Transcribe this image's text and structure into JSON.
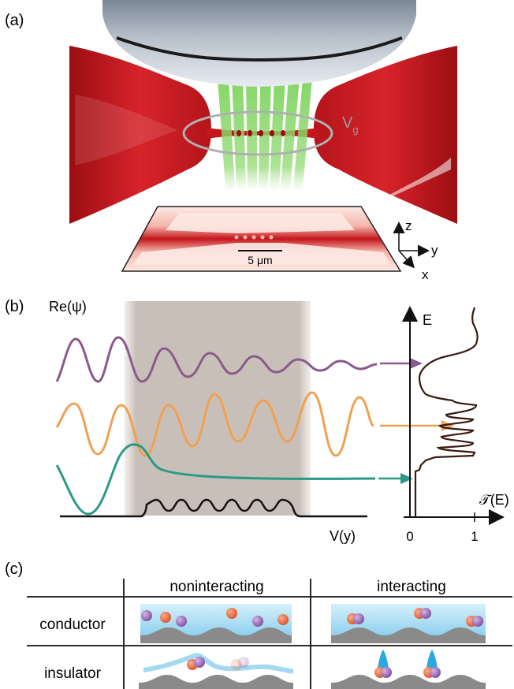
{
  "panels": {
    "a": {
      "label": "(a)",
      "gate_label": "V",
      "gate_sub": "g",
      "scale_bar": "5 μm",
      "axes": {
        "z": "z",
        "y": "y",
        "x": "x"
      }
    },
    "b": {
      "label": "(b)",
      "y_label": "Re(ψ)",
      "potential_label": "V(y)",
      "energy_axis_label": "E",
      "transmission_label": "𝒯(E)",
      "tick_0": "0",
      "tick_1": "1"
    },
    "c": {
      "label": "(c)",
      "col_headers": [
        "noninteracting",
        "interacting"
      ],
      "row_headers": [
        "conductor",
        "insulator"
      ]
    }
  },
  "colors": {
    "purple": "#8a5a8c",
    "orange": "#eea151",
    "teal": "#2a9a86",
    "red": "#c4161c",
    "green": "#7ed35f",
    "dark_brown": "#3a1a10",
    "channel_blue": "#aee0f4"
  }
}
